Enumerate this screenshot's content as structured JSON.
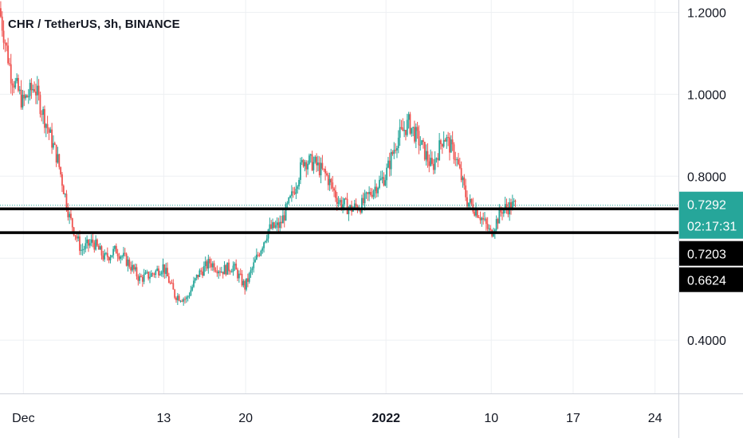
{
  "chart_data": {
    "type": "candlestick",
    "symbol_title": "CHR / TetherUS, 3h, BINANCE",
    "colors": {
      "up": "#26a69a",
      "down": "#ef5350",
      "grid": "#eef0f3",
      "axis_text": "#131722",
      "price_line": "#26a69a",
      "level_line": "#000000"
    },
    "x_axis": {
      "range": [
        "2021-11-29",
        "2022-01-26"
      ],
      "ticks": [
        {
          "label": "Dec",
          "date": "2021-12-01",
          "bold": false
        },
        {
          "label": "13",
          "date": "2021-12-13",
          "bold": false
        },
        {
          "label": "20",
          "date": "2021-12-20",
          "bold": false
        },
        {
          "label": "2022",
          "date": "2022-01-01",
          "bold": true
        },
        {
          "label": "10",
          "date": "2022-01-10",
          "bold": false
        },
        {
          "label": "17",
          "date": "2022-01-17",
          "bold": false
        },
        {
          "label": "24",
          "date": "2022-01-24",
          "bold": false
        }
      ]
    },
    "y_axis": {
      "range": [
        0.27,
        1.23
      ],
      "ticks": [
        {
          "label": "1.2000",
          "value": 1.2
        },
        {
          "label": "1.0000",
          "value": 1.0
        },
        {
          "label": "0.8000",
          "value": 0.8
        },
        {
          "label": "0.4000",
          "value": 0.4
        }
      ]
    },
    "current_price": {
      "value": 0.7292,
      "label": "0.7292",
      "countdown": "02:17:31"
    },
    "horizontal_levels": [
      {
        "value": 0.7203,
        "label": "0.7203"
      },
      {
        "value": 0.6624,
        "label": "0.6624"
      }
    ],
    "price_path": [
      [
        "2021-11-29",
        1.21
      ],
      [
        "2021-11-30",
        1.05
      ],
      [
        "2021-12-01",
        0.98
      ],
      [
        "2021-12-02",
        1.02
      ],
      [
        "2021-12-03",
        0.93
      ],
      [
        "2021-12-04",
        0.84
      ],
      [
        "2021-12-05",
        0.7
      ],
      [
        "2021-12-06",
        0.62
      ],
      [
        "2021-12-07",
        0.64
      ],
      [
        "2021-12-08",
        0.6
      ],
      [
        "2021-12-09",
        0.62
      ],
      [
        "2021-12-10",
        0.59
      ],
      [
        "2021-12-11",
        0.55
      ],
      [
        "2021-12-12",
        0.56
      ],
      [
        "2021-12-13",
        0.58
      ],
      [
        "2021-12-14",
        0.51
      ],
      [
        "2021-12-15",
        0.5
      ],
      [
        "2021-12-16",
        0.56
      ],
      [
        "2021-12-17",
        0.59
      ],
      [
        "2021-12-18",
        0.57
      ],
      [
        "2021-12-19",
        0.58
      ],
      [
        "2021-12-20",
        0.53
      ],
      [
        "2021-12-21",
        0.6
      ],
      [
        "2021-12-22",
        0.67
      ],
      [
        "2021-12-23",
        0.68
      ],
      [
        "2021-12-24",
        0.75
      ],
      [
        "2021-12-25",
        0.84
      ],
      [
        "2021-12-26",
        0.83
      ],
      [
        "2021-12-27",
        0.8
      ],
      [
        "2021-12-28",
        0.74
      ],
      [
        "2021-12-29",
        0.72
      ],
      [
        "2021-12-30",
        0.73
      ],
      [
        "2021-12-31",
        0.77
      ],
      [
        "2022-01-01",
        0.8
      ],
      [
        "2022-01-02",
        0.89
      ],
      [
        "2022-01-03",
        0.93
      ],
      [
        "2022-01-04",
        0.88
      ],
      [
        "2022-01-05",
        0.82
      ],
      [
        "2022-01-06",
        0.9
      ],
      [
        "2022-01-07",
        0.85
      ],
      [
        "2022-01-08",
        0.74
      ],
      [
        "2022-01-09",
        0.71
      ],
      [
        "2022-01-10",
        0.66
      ],
      [
        "2022-01-11",
        0.72
      ],
      [
        "2022-01-12",
        0.729
      ]
    ]
  }
}
